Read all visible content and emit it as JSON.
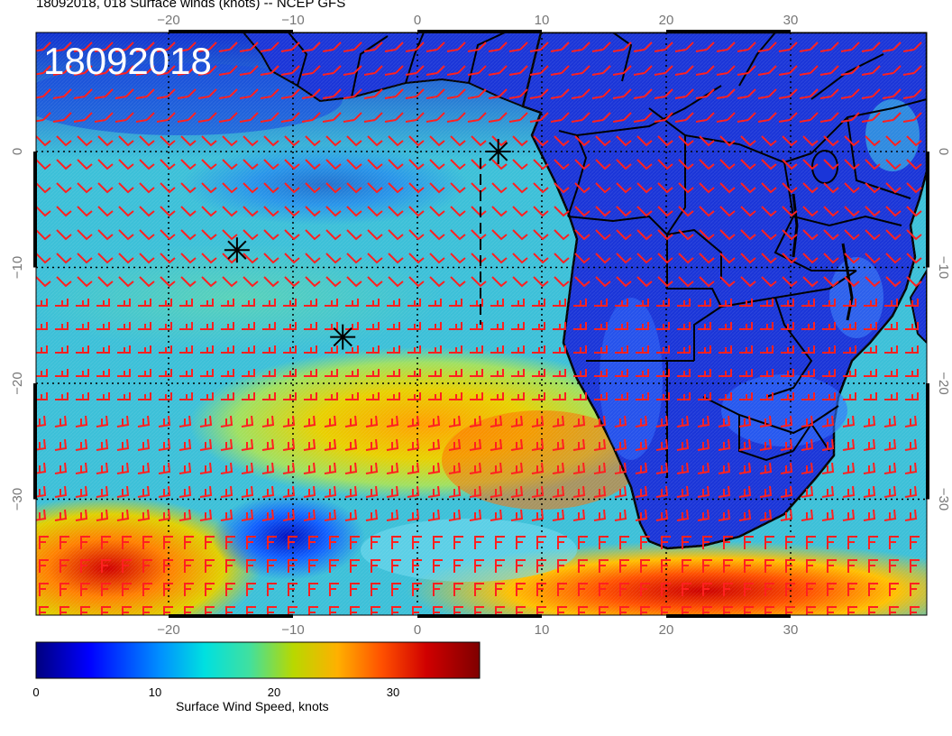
{
  "title": "18092018, 018 Surface winds (knots) -- NCEP GFS",
  "date_stamp": "18092018",
  "lon_ticks": [
    "−20",
    "−10",
    "0",
    "10",
    "20",
    "30"
  ],
  "lat_ticks": [
    "0",
    "−10",
    "−20",
    "−30"
  ],
  "colorbar": {
    "label": "Surface Wind Speed, knots",
    "ticks": [
      "0",
      "10",
      "20",
      "30"
    ],
    "range": [
      0,
      37
    ],
    "colors": [
      "#00007f",
      "#0000ff",
      "#00a0ff",
      "#00e0e0",
      "#40e0a0",
      "#c0d000",
      "#ffa000",
      "#ff4000",
      "#cc0000",
      "#7f0000"
    ]
  },
  "markers": [
    {
      "name": "storm-marker-1",
      "lon": 6.5,
      "lat": 0
    },
    {
      "name": "storm-marker-2",
      "lon": -14.5,
      "lat": -8.5
    },
    {
      "name": "storm-marker-3",
      "lon": -6,
      "lat": -16
    }
  ],
  "colors": {
    "barb": "#ff2020",
    "ocean_base": "#3cc0d8",
    "land": "#1a35d8",
    "border": "#000000"
  }
}
